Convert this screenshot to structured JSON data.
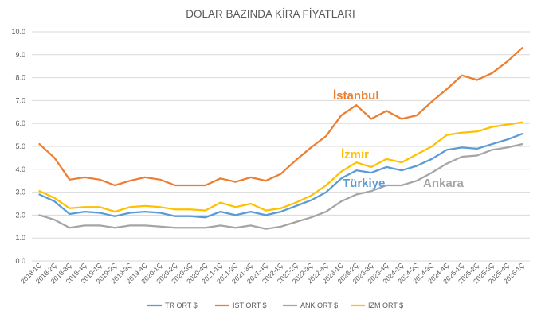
{
  "chart_data": {
    "type": "line",
    "title": "DOLAR BAZINDA KİRA FİYATLARI",
    "xlabel": "",
    "ylabel": "",
    "ylim": [
      0,
      10
    ],
    "y_ticks": [
      "0.0",
      "1.0",
      "2.0",
      "3.0",
      "4.0",
      "5.0",
      "6.0",
      "7.0",
      "8.0",
      "9.0",
      "10.0"
    ],
    "grid": true,
    "legend_position": "bottom",
    "categories": [
      "2018-1Ç",
      "2018-2Ç",
      "2018-3Ç",
      "2018-4Ç",
      "2019-1Ç",
      "2019-2Ç",
      "2019-3Ç",
      "2019-4Ç",
      "2020-1Ç",
      "2020-2Ç",
      "2020-3Ç",
      "2020-4Ç",
      "2021-1Ç",
      "2021-2Ç",
      "2021-3Ç",
      "2021-4Ç",
      "2022-1Ç",
      "2022-2Ç",
      "2022-3Ç",
      "2022-4Ç",
      "2023-1Ç",
      "2023-2Ç",
      "2023-3Ç",
      "2023-4Ç",
      "2024-1Ç",
      "2024-2Ç",
      "2024-3Ç",
      "2024-4Ç",
      "2025-1Ç",
      "2025-2Ç",
      "2025-3Ç",
      "2025-4Ç",
      "2026-1Ç"
    ],
    "series": [
      {
        "name": "TR ORT $",
        "color": "#5B9BD5",
        "values": [
          2.9,
          2.6,
          2.05,
          2.15,
          2.1,
          1.95,
          2.1,
          2.15,
          2.1,
          1.95,
          1.95,
          1.9,
          2.15,
          2.0,
          2.15,
          2.0,
          2.15,
          2.4,
          2.65,
          3.0,
          3.6,
          3.95,
          3.85,
          4.1,
          3.95,
          4.15,
          4.45,
          4.85,
          4.95,
          4.9,
          5.1,
          5.3,
          5.55
        ]
      },
      {
        "name": "İST ORT $",
        "color": "#ED7D31",
        "values": [
          5.1,
          4.5,
          3.55,
          3.65,
          3.55,
          3.3,
          3.5,
          3.65,
          3.55,
          3.3,
          3.3,
          3.3,
          3.6,
          3.45,
          3.65,
          3.5,
          3.8,
          4.4,
          4.95,
          5.45,
          6.35,
          6.8,
          6.2,
          6.55,
          6.2,
          6.35,
          6.95,
          7.5,
          8.1,
          7.9,
          8.2,
          8.7,
          9.3
        ]
      },
      {
        "name": "ANK ORT $",
        "color": "#A5A5A5",
        "values": [
          2.0,
          1.8,
          1.45,
          1.55,
          1.55,
          1.45,
          1.55,
          1.55,
          1.5,
          1.45,
          1.45,
          1.45,
          1.55,
          1.45,
          1.55,
          1.4,
          1.5,
          1.7,
          1.9,
          2.15,
          2.6,
          2.9,
          3.05,
          3.3,
          3.3,
          3.5,
          3.85,
          4.25,
          4.55,
          4.6,
          4.85,
          4.95,
          5.1
        ]
      },
      {
        "name": "İZM ORT $",
        "color": "#FFC000",
        "values": [
          3.05,
          2.75,
          2.3,
          2.35,
          2.35,
          2.15,
          2.35,
          2.4,
          2.35,
          2.25,
          2.25,
          2.2,
          2.55,
          2.35,
          2.5,
          2.2,
          2.3,
          2.55,
          2.85,
          3.3,
          3.9,
          4.3,
          4.1,
          4.45,
          4.3,
          4.65,
          5.0,
          5.5,
          5.6,
          5.65,
          5.85,
          5.95,
          6.05
        ]
      }
    ],
    "annotations": [
      {
        "text": "İstanbul",
        "color": "#ED7D31"
      },
      {
        "text": "İzmir",
        "color": "#FFC000"
      },
      {
        "text": "Türkiye",
        "color": "#5B9BD5"
      },
      {
        "text": "Ankara",
        "color": "#A5A5A5"
      }
    ]
  }
}
